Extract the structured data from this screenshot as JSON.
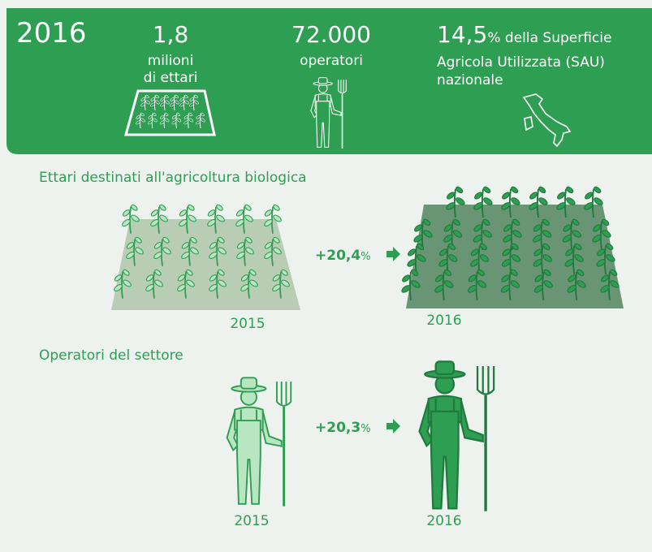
{
  "header": {
    "year": "2016",
    "stats": [
      {
        "value": "1,8",
        "label_lines": [
          "milioni",
          "di ettari"
        ]
      },
      {
        "value": "72.000",
        "label_lines": [
          "operatori"
        ]
      },
      {
        "value": "14,5",
        "unit": "% della Superficie",
        "label_lines": [
          "Agricola Utilizzata (SAU)",
          "nazionale"
        ]
      }
    ]
  },
  "sections": [
    {
      "title": "Ettari destinati all'agricoltura biologica",
      "change": "+20,4",
      "unit": "%",
      "years": [
        "2015",
        "2016"
      ]
    },
    {
      "title": "Operatori del settore",
      "change": "+20,3",
      "unit": "%",
      "years": [
        "2015",
        "2016"
      ]
    }
  ]
}
